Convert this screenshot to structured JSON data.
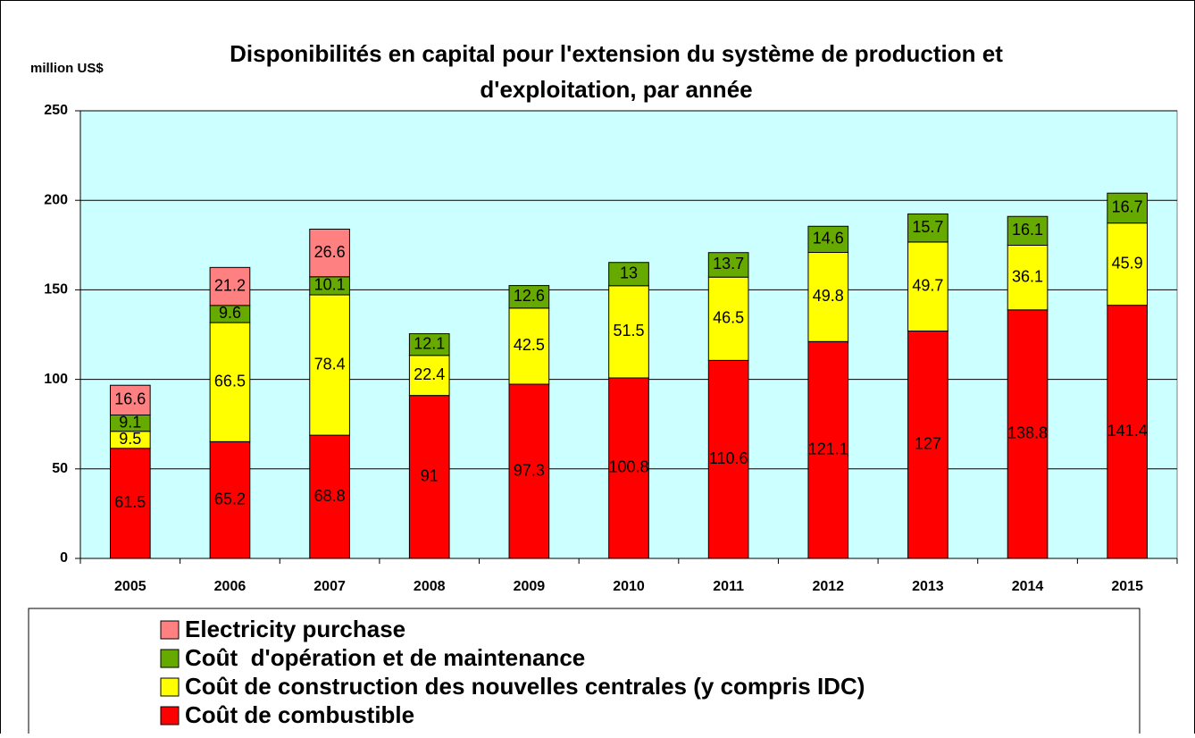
{
  "chart_data": {
    "type": "stacked-bar",
    "title": [
      "Disponibilités en capital pour l'extension du système de production et",
      "d'exploitation, par année"
    ],
    "y_label": "million US$",
    "categories": [
      "2005",
      "2006",
      "2007",
      "2008",
      "2009",
      "2010",
      "2011",
      "2012",
      "2013",
      "2014",
      "2015"
    ],
    "series": [
      {
        "name": "Coût de combustible",
        "color": "#ff0000",
        "values": [
          61.5,
          65.2,
          68.8,
          91,
          97.3,
          100.8,
          110.6,
          121.1,
          127,
          138.8,
          141.4
        ]
      },
      {
        "name": "Coût de construction des nouvelles centrales (y compris IDC)",
        "color": "#ffff00",
        "values": [
          9.5,
          66.5,
          78.4,
          22.4,
          42.5,
          51.5,
          46.5,
          49.8,
          49.7,
          36.1,
          45.9
        ]
      },
      {
        "name": "Coût  d'opération et de maintenance",
        "color": "#66aa00",
        "values": [
          9.1,
          9.6,
          10.1,
          12.1,
          12.6,
          13,
          13.7,
          14.6,
          15.7,
          16.1,
          16.7
        ]
      },
      {
        "name": "Electricity purchase",
        "color": "#ff8080",
        "values": [
          16.6,
          21.2,
          26.6,
          null,
          null,
          null,
          null,
          null,
          null,
          null,
          null
        ]
      }
    ],
    "ylim": [
      0,
      250
    ],
    "yticks": [
      0,
      50,
      100,
      150,
      200,
      250
    ],
    "grid": true,
    "plot_background": "#ccffff",
    "legend": "bottom"
  }
}
